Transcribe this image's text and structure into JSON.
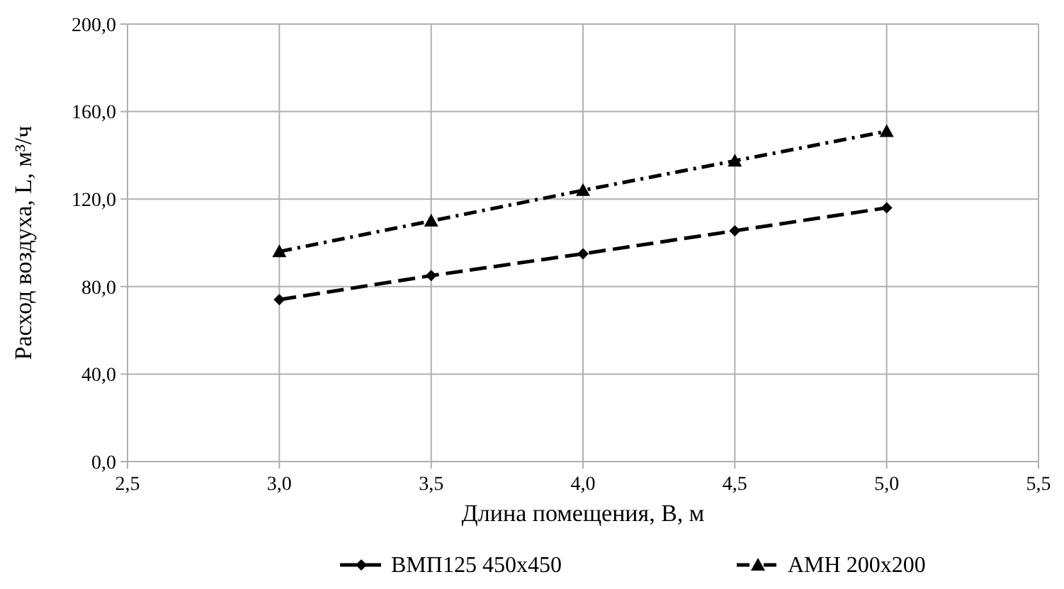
{
  "chart_data": {
    "type": "line",
    "xlabel": "Длина помещения, B, м",
    "ylabel": "Расход воздуха, L, м³/ч",
    "x": [
      3.0,
      3.5,
      4.0,
      4.5,
      5.0
    ],
    "series": [
      {
        "name": "ВМП125 450x450",
        "color": "#000000",
        "values": [
          74,
          85,
          95,
          105.5,
          116
        ],
        "marker": "diamond",
        "line_style": "dashed"
      },
      {
        "name": "АМН 200x200",
        "color": "#000000",
        "values": [
          96,
          110,
          124,
          137.5,
          151
        ],
        "marker": "triangle",
        "line_style": "dashdot"
      }
    ],
    "xlim": [
      2.5,
      5.5
    ],
    "xticks": [
      {
        "value": 2.5,
        "label": "2,5"
      },
      {
        "value": 3,
        "label": "3,0"
      },
      {
        "value": 3.5,
        "label": "3,5"
      },
      {
        "value": 4,
        "label": "4,0"
      },
      {
        "value": 4.5,
        "label": "4,5"
      },
      {
        "value": 5,
        "label": "5,0"
      },
      {
        "value": 5.5,
        "label": "5,5"
      }
    ],
    "ylim": [
      0,
      200
    ],
    "yticks": [
      {
        "value": 0,
        "label": "0,0"
      },
      {
        "value": 40,
        "label": "40,0"
      },
      {
        "value": 80,
        "label": "80,0"
      },
      {
        "value": 120,
        "label": "120,0"
      },
      {
        "value": 160,
        "label": "160,0"
      },
      {
        "value": 200,
        "label": "200,0"
      }
    ],
    "grid": true,
    "legend": "bottom"
  }
}
